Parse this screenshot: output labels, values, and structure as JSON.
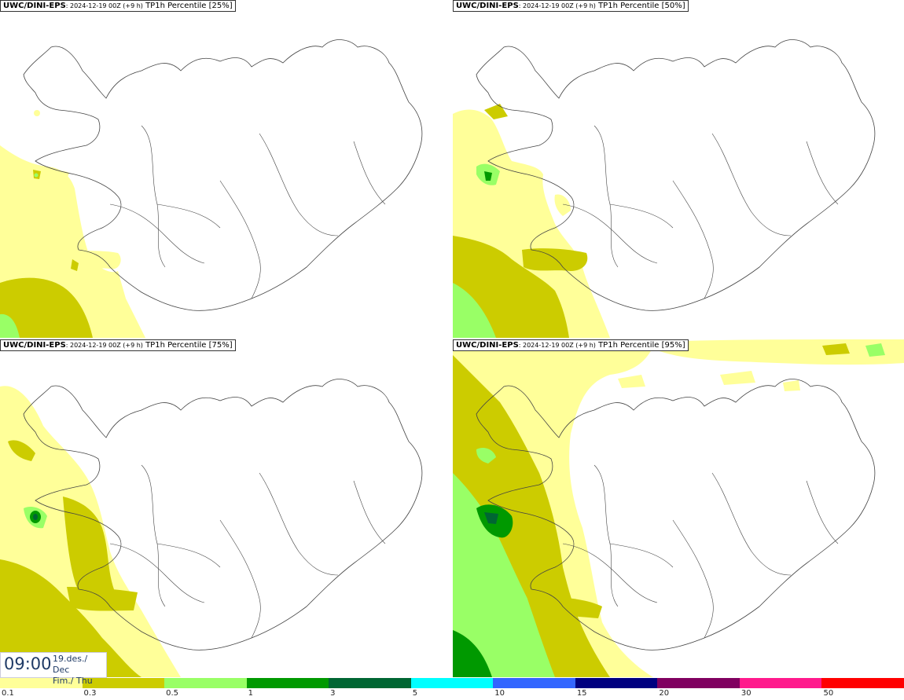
{
  "panels": [
    {
      "model": "UWC/DINI-EPS",
      "run": ": 2024-12-19 00Z (+9 h)",
      "field": " TP1h Percentile [25%]"
    },
    {
      "model": "UWC/DINI-EPS",
      "run": ": 2024-12-19 00Z (+9 h)",
      "field": " TP1h Percentile [50%]"
    },
    {
      "model": "UWC/DINI-EPS",
      "run": ": 2024-12-19 00Z (+9 h)",
      "field": " TP1h Percentile [75%]"
    },
    {
      "model": "UWC/DINI-EPS",
      "run": ": 2024-12-19 00Z (+9 h)",
      "field": " TP1h Percentile [95%]"
    }
  ],
  "valid_time": {
    "time": "09:00",
    "date_line1": "19.des./ Dec",
    "date_line2": "Fim./ Thu"
  },
  "legend": {
    "labels": [
      "0.1",
      "0.3",
      "0.5",
      "1",
      "3",
      "5",
      "10",
      "15",
      "20",
      "30",
      "50"
    ],
    "colors": [
      "#ffff99",
      "#cccc00",
      "#99ff66",
      "#009900",
      "#006633",
      "#00ffff",
      "#3366ff",
      "#000080",
      "#800060",
      "#ff1a8c",
      "#ff0000"
    ]
  },
  "colors": {
    "coast": "#444444",
    "border": "#333333"
  }
}
